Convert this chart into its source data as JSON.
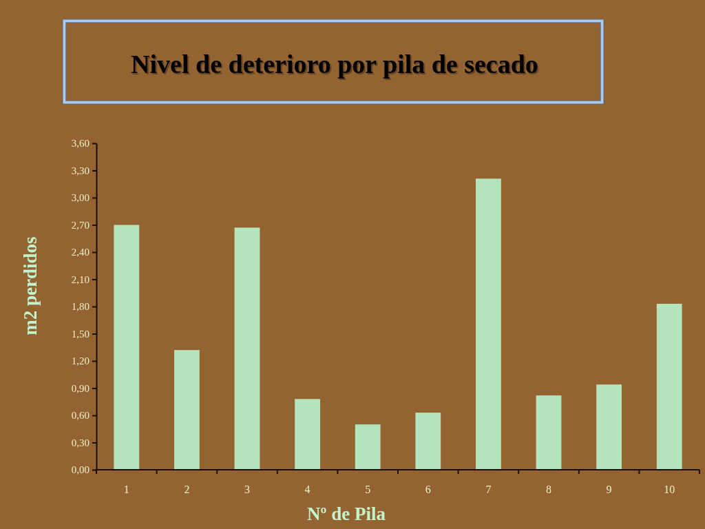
{
  "chart_data": {
    "type": "bar",
    "title": "Nivel de deterioro por pila de secado",
    "xlabel": "Nº de Pila",
    "ylabel": "m2 perdidos",
    "categories": [
      "1",
      "2",
      "3",
      "4",
      "5",
      "6",
      "7",
      "8",
      "9",
      "10"
    ],
    "values": [
      2.7,
      1.32,
      2.67,
      0.78,
      0.5,
      0.63,
      3.21,
      0.82,
      0.94,
      1.83
    ],
    "color": "#b4e4bc",
    "ylim": [
      0,
      3.6
    ],
    "yticks": [
      {
        "value": 0,
        "label": "0,00"
      },
      {
        "value": 0.3,
        "label": "0,30"
      },
      {
        "value": 0.6,
        "label": "0,60"
      },
      {
        "value": 0.9,
        "label": "0,90"
      },
      {
        "value": 1.2,
        "label": "1,20"
      },
      {
        "value": 1.5,
        "label": "1,50"
      },
      {
        "value": 1.8,
        "label": "1,80"
      },
      {
        "value": 2.1,
        "label": "2,10"
      },
      {
        "value": 2.4,
        "label": "2,40"
      },
      {
        "value": 2.7,
        "label": "2,70"
      },
      {
        "value": 3.0,
        "label": "3,00"
      },
      {
        "value": 3.3,
        "label": "3,30"
      },
      {
        "value": 3.6,
        "label": "3,60"
      }
    ],
    "grid": false
  }
}
